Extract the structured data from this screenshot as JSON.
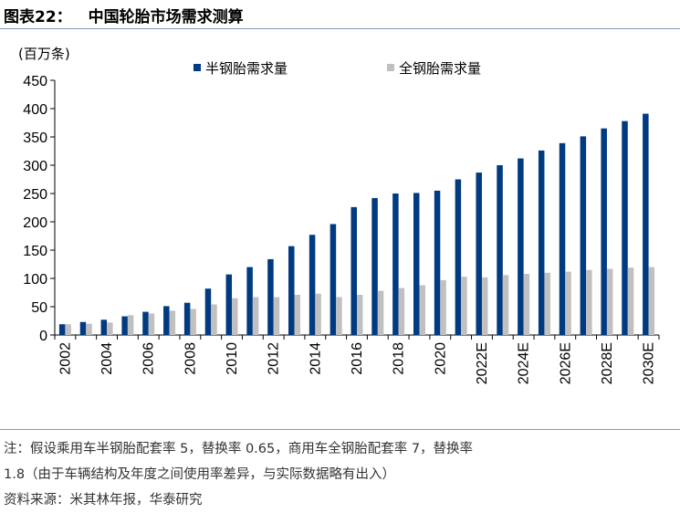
{
  "figure": {
    "label": "图表22：",
    "title": "中国轮胎市场需求测算"
  },
  "notes": {
    "line1": "注：假设乘用车半钢胎配套率 5，替换率 0.65，商用车全钢胎配套率 7，替换率",
    "line2": "1.8（由于车辆结构及年度之间使用率差异，与实际数据略有出入）",
    "source": "资料来源：米其林年报，华泰研究"
  },
  "chart_data": {
    "type": "bar",
    "unit_label": "(百万条)",
    "categories": [
      "2002",
      "2003",
      "2004",
      "2005",
      "2006",
      "2007",
      "2008",
      "2009",
      "2010",
      "2011",
      "2012",
      "2013",
      "2014",
      "2015",
      "2016",
      "2017",
      "2018",
      "2019",
      "2020",
      "2021",
      "2022E",
      "2023E",
      "2024E",
      "2025E",
      "2026E",
      "2027E",
      "2028E",
      "2029E",
      "2030E"
    ],
    "tick_labels": [
      "2002",
      "2004",
      "2006",
      "2008",
      "2010",
      "2012",
      "2014",
      "2016",
      "2018",
      "2020",
      "2022E",
      "2024E",
      "2026E",
      "2028E",
      "2030E"
    ],
    "yticks": [
      0,
      50,
      100,
      150,
      200,
      250,
      300,
      350,
      400,
      450
    ],
    "ylim": [
      0,
      450
    ],
    "legend": "top",
    "grid": false,
    "series": [
      {
        "name": "半钢胎需求量",
        "color": "#003a80",
        "values": [
          19,
          23,
          27,
          33,
          41,
          51,
          57,
          82,
          107,
          120,
          134,
          157,
          177,
          196,
          226,
          242,
          250,
          251,
          255,
          275,
          287,
          300,
          312,
          326,
          339,
          351,
          365,
          378,
          391
        ]
      },
      {
        "name": "全钢胎需求量",
        "color": "#c0c0c0",
        "values": [
          19,
          20,
          22,
          35,
          38,
          43,
          46,
          54,
          65,
          67,
          67,
          71,
          73,
          67,
          71,
          78,
          83,
          88,
          97,
          103,
          102,
          106,
          108,
          110,
          112,
          115,
          117,
          119,
          120
        ]
      }
    ]
  }
}
